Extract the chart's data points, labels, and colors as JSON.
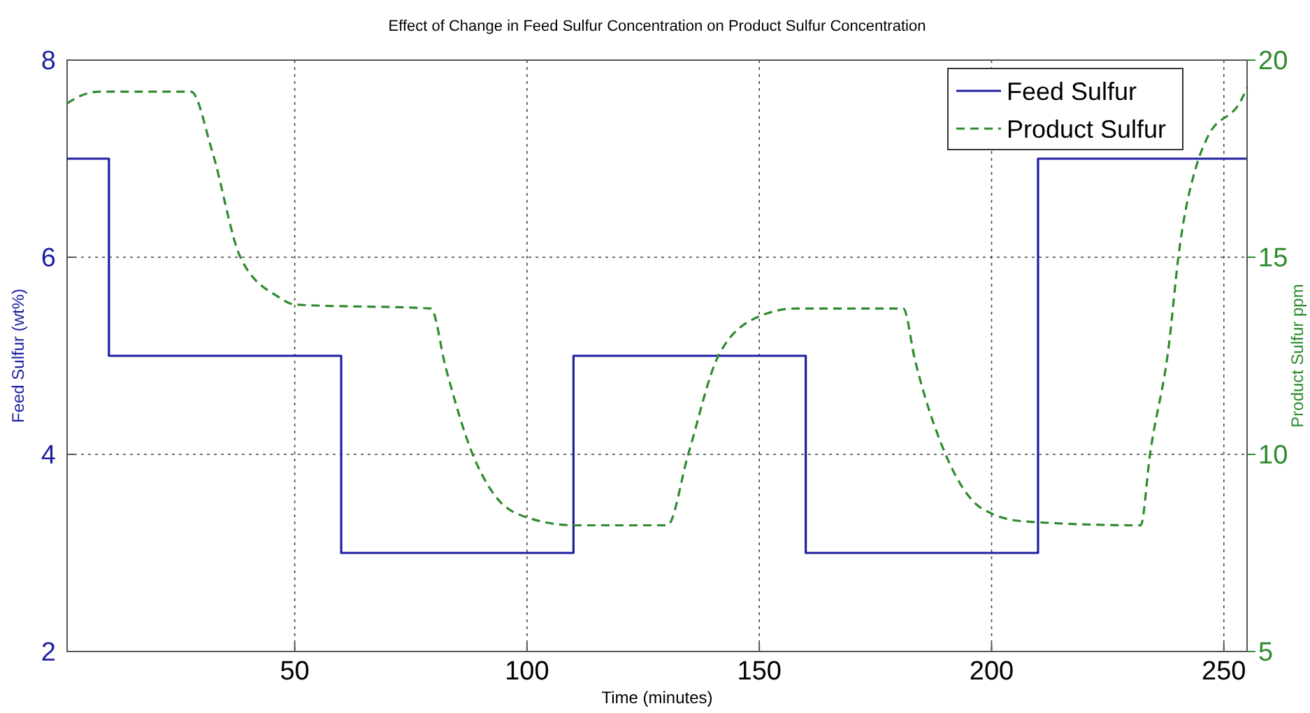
{
  "chart_data": {
    "type": "line",
    "title": "Effect of Change in Feed Sulfur Concentration on Product Sulfur Concentration",
    "xlabel": "Time (minutes)",
    "ylabel": "Feed Sulfur (wt%)",
    "y2label": "Product Sulfur ppm",
    "xlim": [
      1,
      255
    ],
    "xticks": [
      50,
      100,
      150,
      200,
      250
    ],
    "ylim": [
      2,
      8
    ],
    "yticks": [
      2,
      4,
      6,
      8
    ],
    "y2lim": [
      5,
      20
    ],
    "y2ticks": [
      5,
      10,
      15,
      20
    ],
    "grid": true,
    "legend": "top right",
    "series": [
      {
        "name": "Feed Sulfur",
        "type": "step",
        "color": "#1f1fa0",
        "line_style": "solid",
        "x": [
          1,
          10,
          60,
          110,
          160,
          210,
          255
        ],
        "values": [
          7,
          5,
          3,
          5,
          3,
          7,
          7
        ]
      },
      {
        "name": "Product Sulfur",
        "axis": "y2",
        "color": "#2e8b2e",
        "line_style": "dashed",
        "x": [
          1,
          4,
          8,
          27.7,
          32.2,
          38.3,
          46.4,
          50,
          79.3,
          82.5,
          88.3,
          92.8,
          100,
          110.3,
          130.2,
          134.7,
          141.2,
          150,
          157.9,
          181,
          183.5,
          190.1,
          196.1,
          200,
          207,
          232.1,
          234.1,
          238.2,
          240.2,
          244.3,
          246.3,
          253.8,
          255
        ],
        "values": [
          18.9,
          19.1,
          19.2,
          19.2,
          17.7,
          15.0,
          14.0,
          13.8,
          13.7,
          12.2,
          10.0,
          9.0,
          8.4,
          8.2,
          8.2,
          10.0,
          12.5,
          13.5,
          13.7,
          13.7,
          12.4,
          10.0,
          8.8,
          8.5,
          8.3,
          8.2,
          10.0,
          12.8,
          15.0,
          17.4,
          18.0,
          19.0,
          19.3
        ]
      }
    ]
  }
}
